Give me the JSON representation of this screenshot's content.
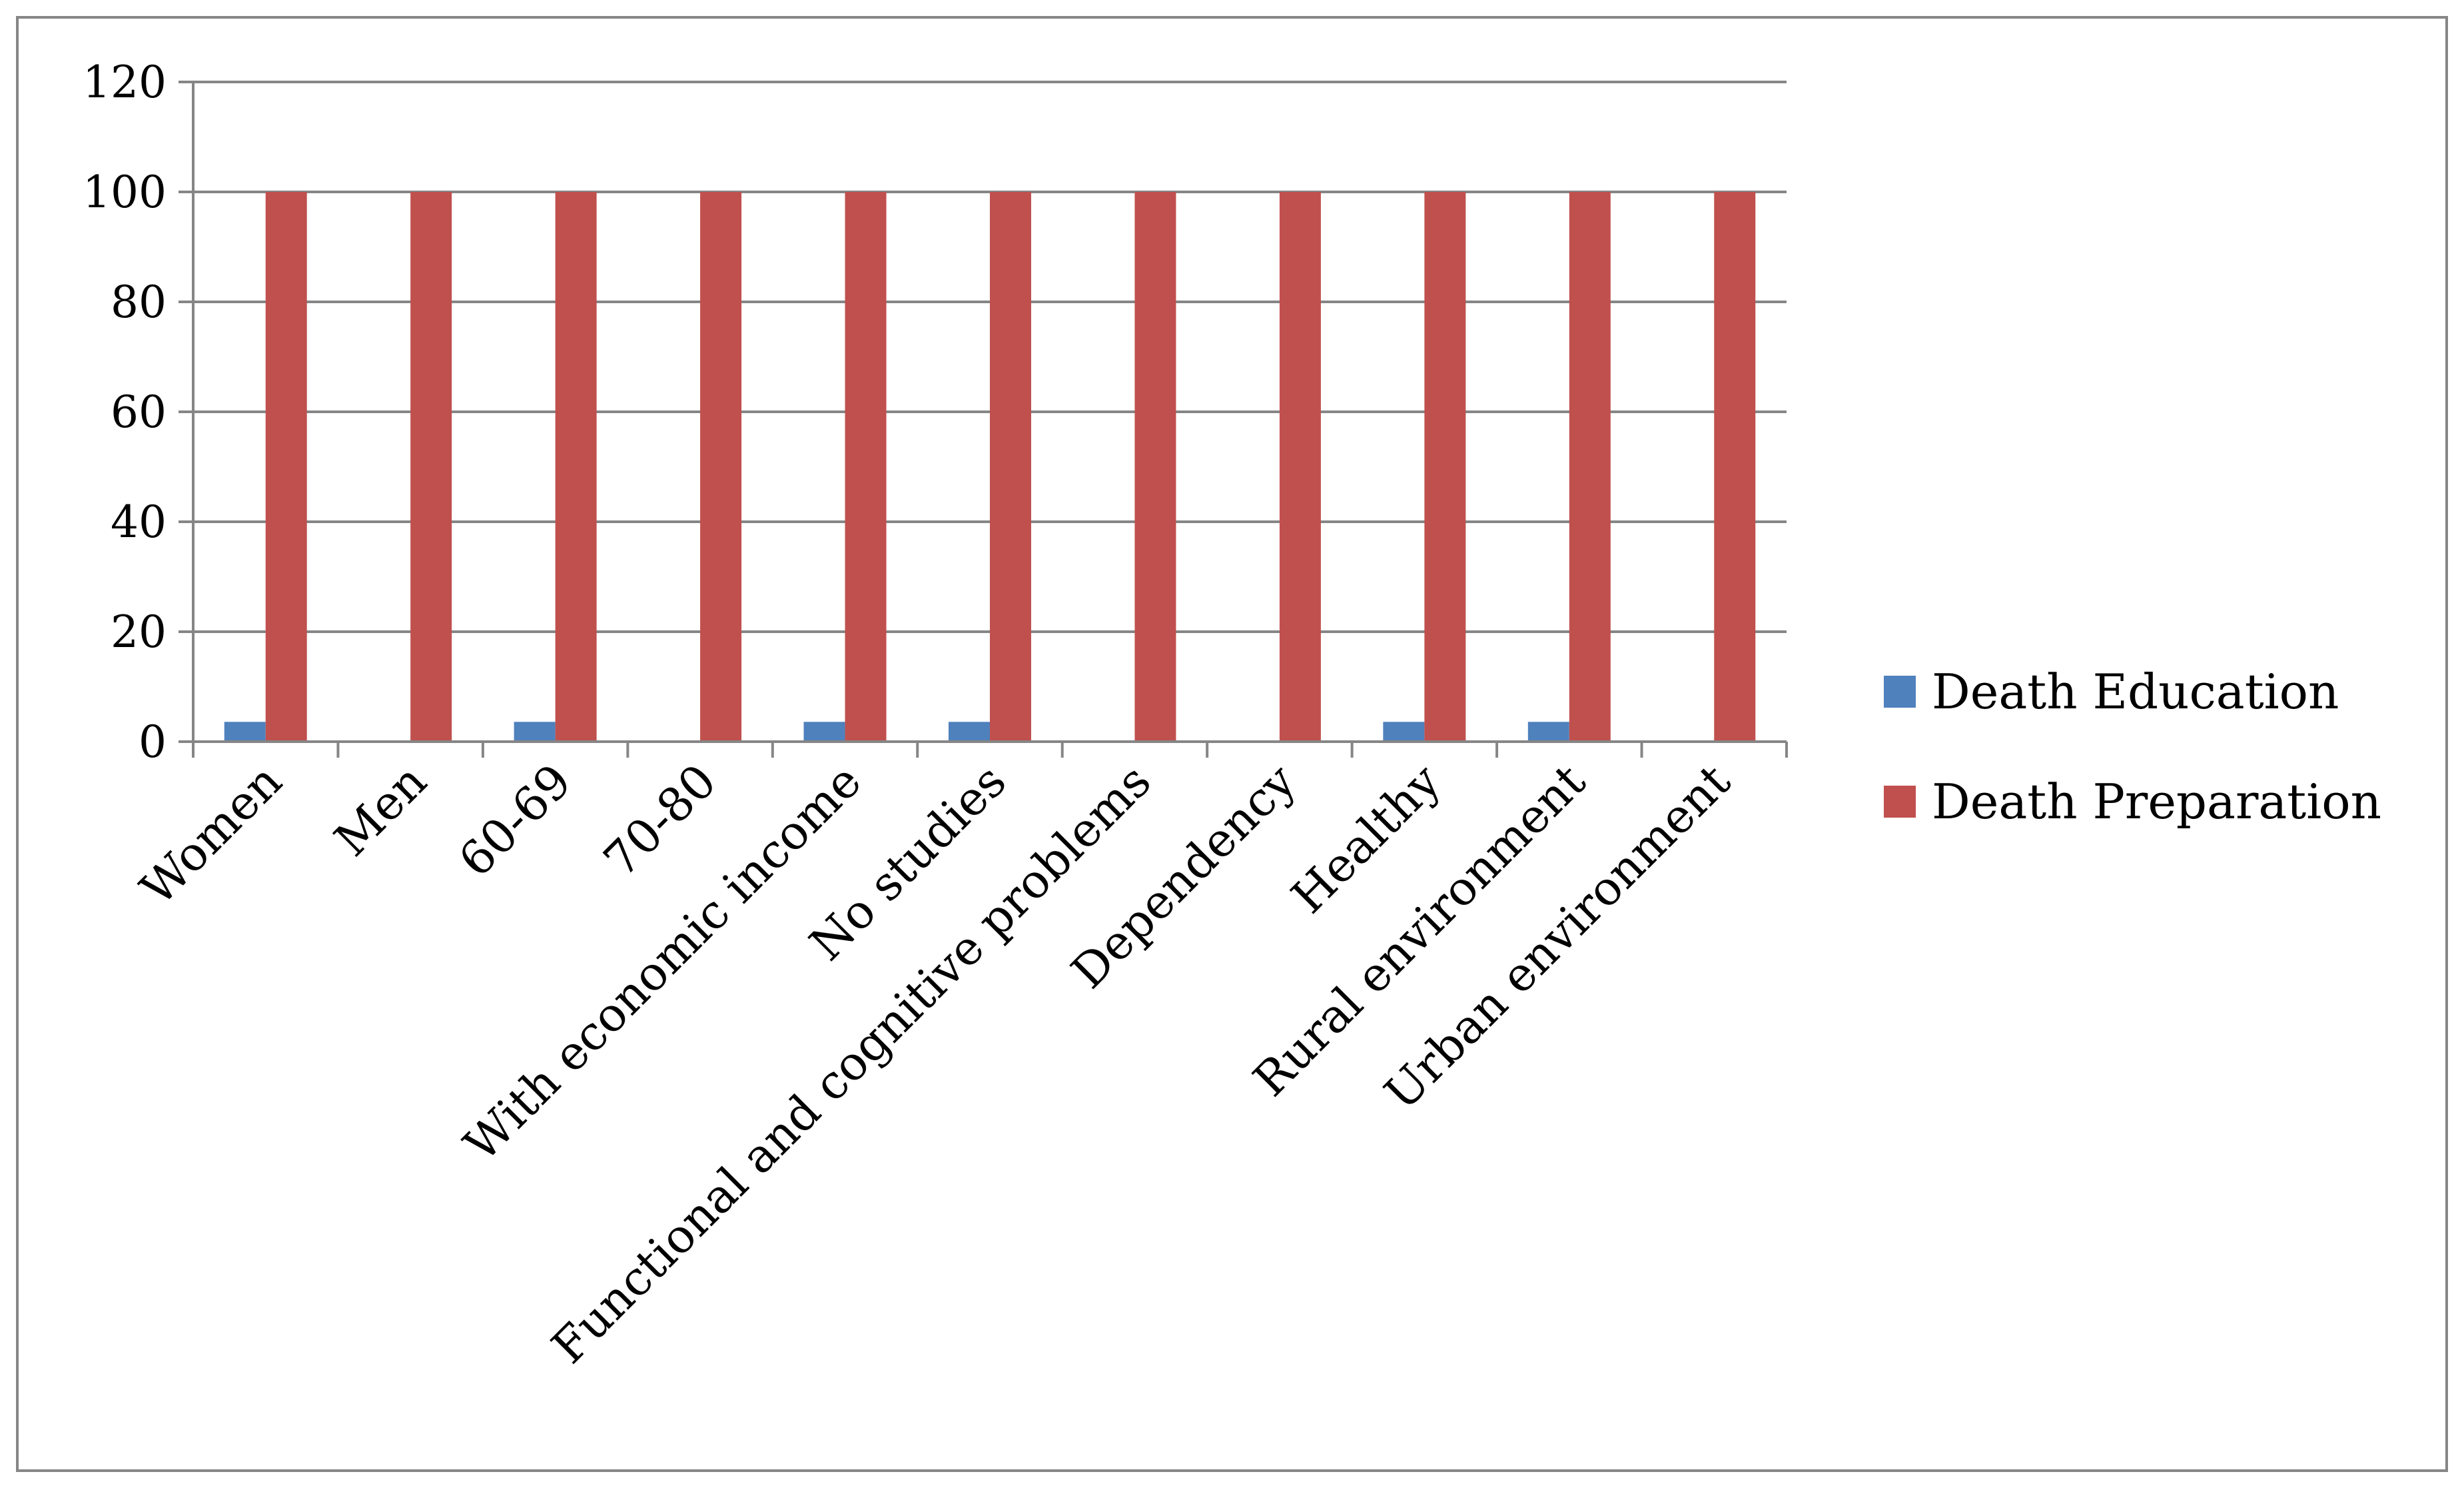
{
  "chart_data": {
    "type": "bar",
    "title": "",
    "xlabel": "",
    "ylabel": "",
    "ylim": [
      0,
      120
    ],
    "yticks": [
      0,
      20,
      40,
      60,
      80,
      100,
      120
    ],
    "grid": true,
    "legend_position": "right",
    "categories": [
      "Women",
      "Men",
      "60-69",
      "70-80",
      "With economic income",
      "No studies",
      "Functional and cognitive problems",
      "Dependency",
      "Healthy",
      "Rural environment",
      "Urban environment"
    ],
    "series": [
      {
        "name": "Death Education",
        "color": "#4F81BD",
        "values": [
          3.6,
          0,
          3.6,
          0,
          3.6,
          3.6,
          0,
          0,
          3.6,
          3.6,
          0
        ]
      },
      {
        "name": "Death Preparation",
        "color": "#C0504D",
        "values": [
          100,
          100,
          100,
          100,
          100,
          100,
          100,
          100,
          100,
          100,
          100
        ]
      }
    ]
  }
}
